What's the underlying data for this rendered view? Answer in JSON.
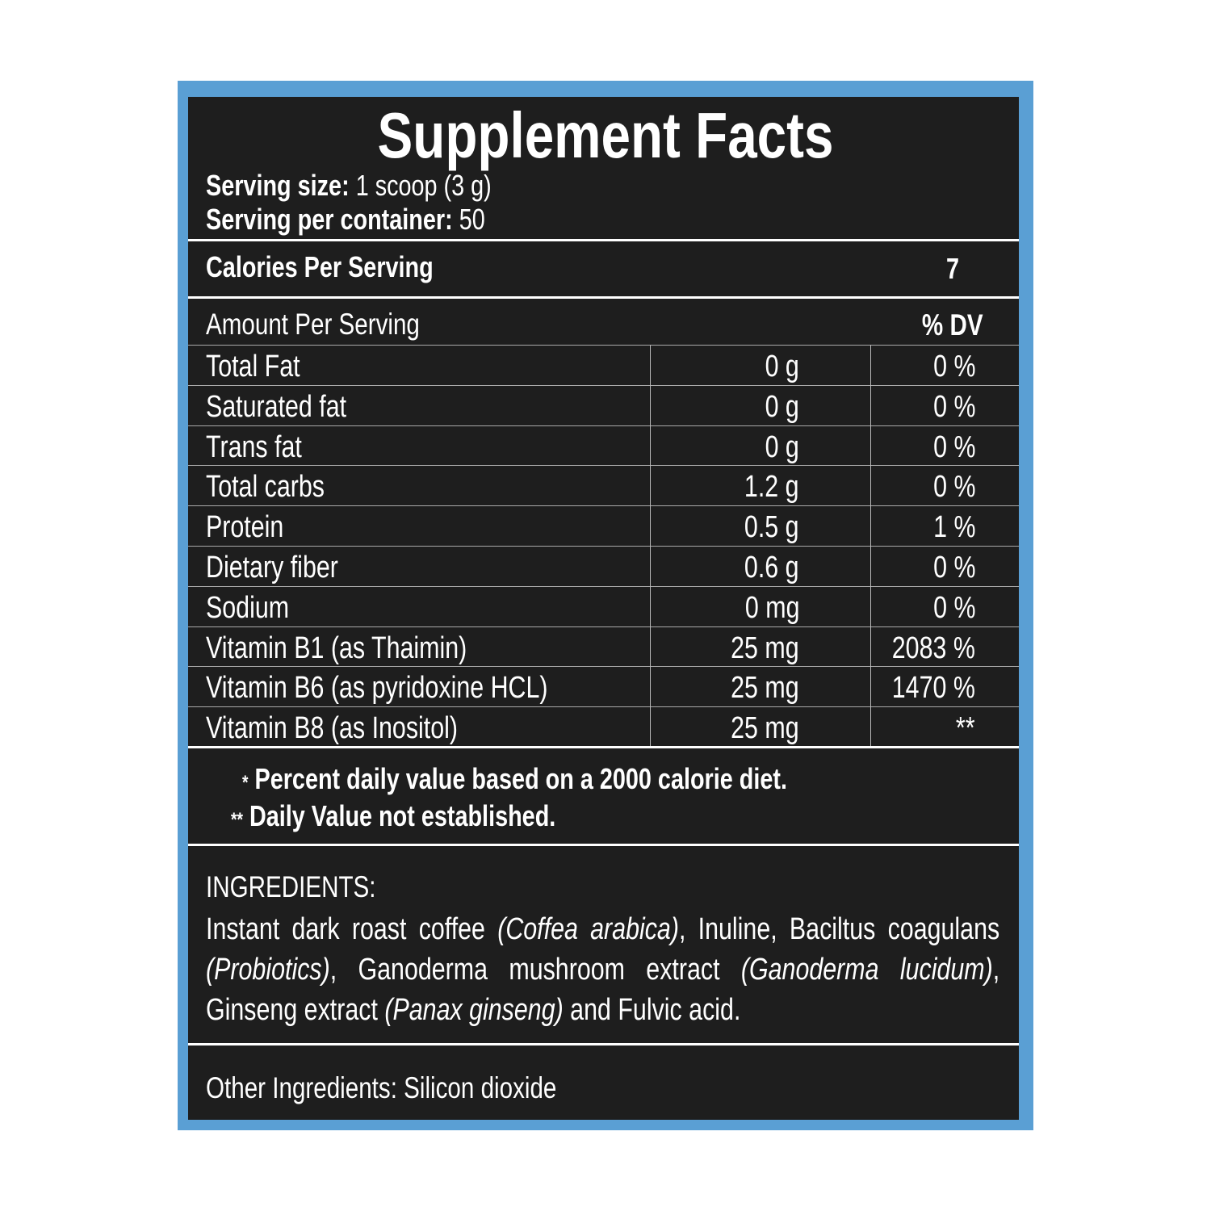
{
  "colors": {
    "frame": "#5a9fd4",
    "panel": "#1e1e1e",
    "text": "#ffffff"
  },
  "title": "Supplement Facts",
  "serving_size": {
    "label": "Serving size:",
    "value": "1 scoop (3 g)"
  },
  "servings_per_container": {
    "label": "Serving per container:",
    "value": "50"
  },
  "calories": {
    "label": "Calories Per Serving",
    "value": "7"
  },
  "header": {
    "amount": "Amount Per Serving",
    "dv": "% DV"
  },
  "rows": [
    {
      "name": "Total Fat",
      "amount": "0 g",
      "dv": "0 %"
    },
    {
      "name": "Saturated fat",
      "amount": "0 g",
      "dv": "0 %"
    },
    {
      "name": "Trans fat",
      "amount": "0 g",
      "dv": "0 %"
    },
    {
      "name": "Total carbs",
      "amount": "1.2 g",
      "dv": "0 %"
    },
    {
      "name": "Protein",
      "amount": "0.5 g",
      "dv": "1 %"
    },
    {
      "name": "Dietary fiber",
      "amount": "0.6 g",
      "dv": "0 %"
    },
    {
      "name": "Sodium",
      "amount": "0 mg",
      "dv": "0 %"
    },
    {
      "name": "Vitamin B1 (as Thaimin)",
      "amount": "25 mg",
      "dv": "2083 %"
    },
    {
      "name": "Vitamin B6 (as pyridoxine HCL)",
      "amount": "25 mg",
      "dv": "1470 %"
    },
    {
      "name": "Vitamin B8 (as Inositol)",
      "amount": "25 mg",
      "dv": "**"
    }
  ],
  "footnotes": [
    {
      "mark": "*",
      "text": "Percent daily value based on a 2000 calorie diet."
    },
    {
      "mark": "**",
      "text": "Daily Value not established."
    }
  ],
  "ingredients": {
    "heading": "INGREDIENTS:",
    "segments": [
      {
        "text": "Instant dark roast coffee ",
        "italic": false
      },
      {
        "text": "(Coffea arabica)",
        "italic": true
      },
      {
        "text": ", Inuline, Baciltus coagulans ",
        "italic": false
      },
      {
        "text": "(Probiotics)",
        "italic": true
      },
      {
        "text": ", Ganoderma mushroom extract ",
        "italic": false
      },
      {
        "text": "(Ganoderma lucidum)",
        "italic": true
      },
      {
        "text": ", Ginseng extract ",
        "italic": false
      },
      {
        "text": "(Panax ginseng)",
        "italic": true
      },
      {
        "text": " and Fulvic acid.",
        "italic": false
      }
    ]
  },
  "other_ingredients": "Other Ingredients: Silicon dioxide"
}
